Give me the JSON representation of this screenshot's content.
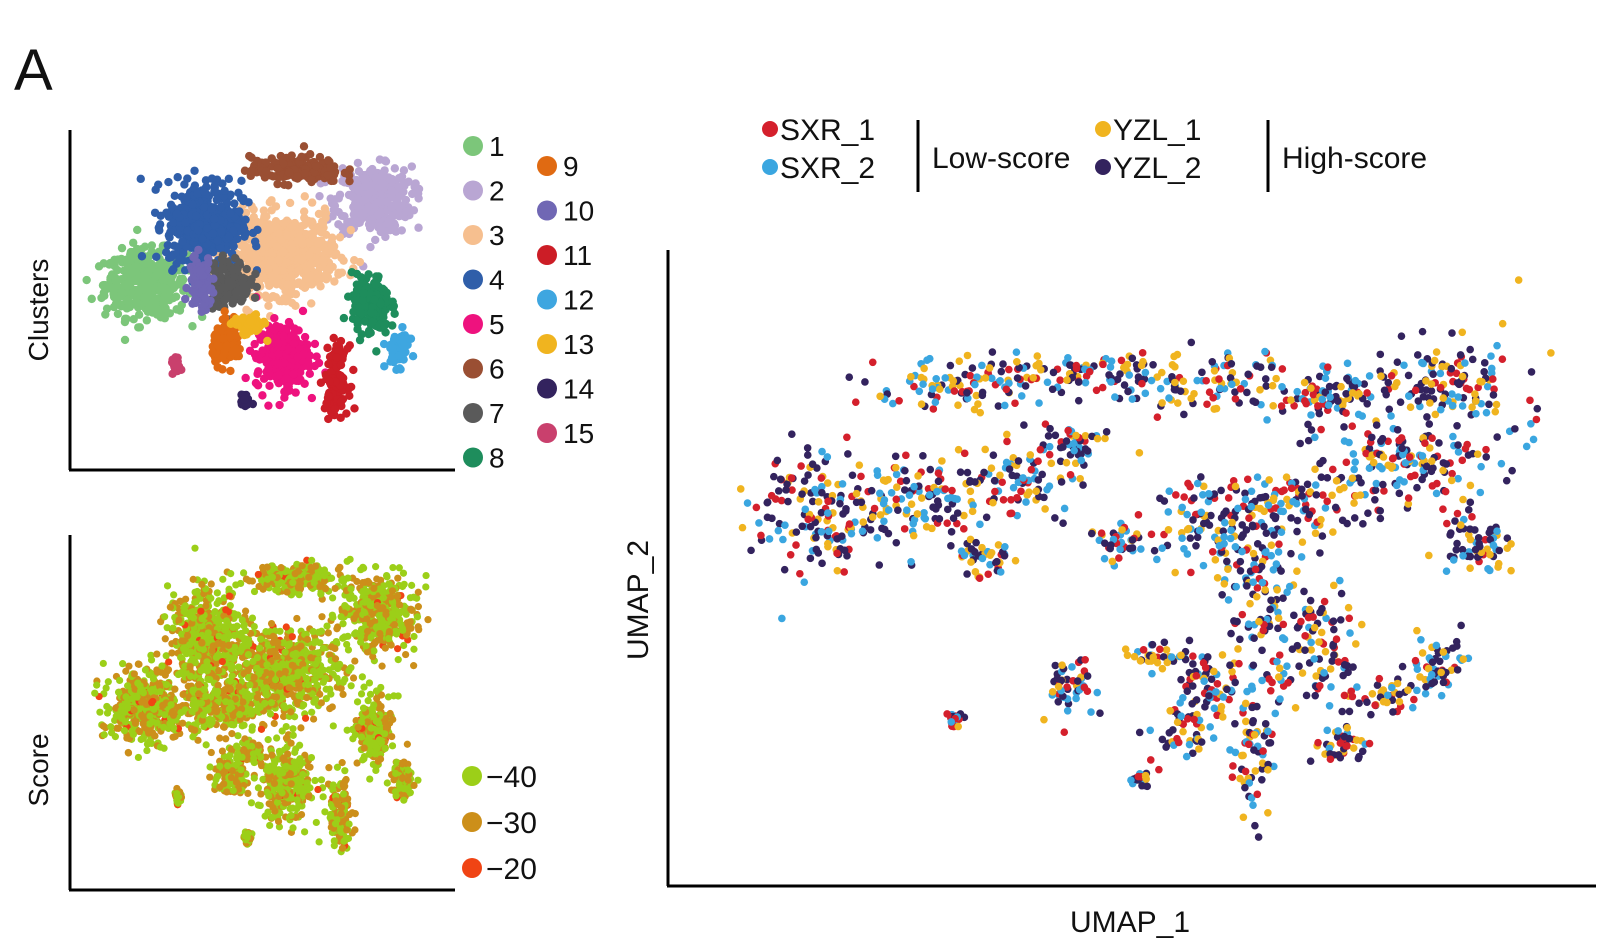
{
  "panel_letter": "A",
  "colors": {
    "clusters": [
      "#7cc67a",
      "#b9a6d3",
      "#f6bf8f",
      "#2f5ea9",
      "#ee127e",
      "#9a4f33",
      "#5a5a5a",
      "#1e8d5c",
      "#e06a12",
      "#7067b4",
      "#cc1d26",
      "#3ea6e0",
      "#f0b41f",
      "#33235e",
      "#c9406d"
    ],
    "samples": {
      "SXR_1": "#d4202c",
      "SXR_2": "#3aa6e0",
      "YZL_1": "#f0b41f",
      "YZL_2": "#33235e"
    },
    "score": [
      "#9ccf18",
      "#cc8f1a",
      "#f04414"
    ]
  },
  "chart_data": [
    {
      "type": "scatter",
      "id": "clusters",
      "ylabel": "Clusters",
      "xlabel": "",
      "legend": {
        "placement": "right",
        "entries": [
          "1",
          "2",
          "3",
          "4",
          "5",
          "6",
          "7",
          "8",
          "9",
          "10",
          "11",
          "12",
          "13",
          "14",
          "15"
        ]
      },
      "clusters": [
        {
          "name": "1",
          "center": [
            0.18,
            0.52
          ],
          "spread": [
            0.11,
            0.1
          ]
        },
        {
          "name": "2",
          "center": [
            0.85,
            0.8
          ],
          "spread": [
            0.1,
            0.1
          ]
        },
        {
          "name": "3",
          "center": [
            0.58,
            0.62
          ],
          "spread": [
            0.14,
            0.12
          ]
        },
        {
          "name": "4",
          "center": [
            0.35,
            0.72
          ],
          "spread": [
            0.1,
            0.13
          ]
        },
        {
          "name": "5",
          "center": [
            0.58,
            0.28
          ],
          "spread": [
            0.07,
            0.1
          ]
        },
        {
          "name": "6",
          "center": [
            0.62,
            0.9
          ],
          "spread": [
            0.12,
            0.04
          ]
        },
        {
          "name": "7",
          "center": [
            0.42,
            0.52
          ],
          "spread": [
            0.06,
            0.07
          ]
        },
        {
          "name": "8",
          "center": [
            0.84,
            0.45
          ],
          "spread": [
            0.05,
            0.09
          ]
        },
        {
          "name": "9",
          "center": [
            0.42,
            0.32
          ],
          "spread": [
            0.04,
            0.06
          ]
        },
        {
          "name": "10",
          "center": [
            0.34,
            0.52
          ],
          "spread": [
            0.03,
            0.08
          ]
        },
        {
          "name": "11",
          "center": [
            0.74,
            0.2
          ],
          "spread": [
            0.03,
            0.1
          ]
        },
        {
          "name": "12",
          "center": [
            0.92,
            0.3
          ],
          "spread": [
            0.03,
            0.05
          ]
        },
        {
          "name": "13",
          "center": [
            0.48,
            0.38
          ],
          "spread": [
            0.04,
            0.03
          ]
        },
        {
          "name": "14",
          "center": [
            0.47,
            0.13
          ],
          "spread": [
            0.01,
            0.02
          ]
        },
        {
          "name": "15",
          "center": [
            0.27,
            0.25
          ],
          "spread": [
            0.01,
            0.02
          ]
        }
      ]
    },
    {
      "type": "scatter",
      "id": "score",
      "ylabel": "Score",
      "xlabel": "",
      "legend": {
        "placement": "bottom-right",
        "entries": [
          "−40",
          "−30",
          "−20"
        ]
      },
      "score_values": [
        -40,
        -30,
        -20
      ]
    },
    {
      "type": "scatter",
      "id": "samples",
      "xlabel": "UMAP_1",
      "ylabel": "UMAP_2",
      "legend": {
        "placement": "top",
        "groups": [
          {
            "label": "Low-score",
            "entries": [
              "SXR_1",
              "SXR_2"
            ]
          },
          {
            "label": "High-score",
            "entries": [
              "YZL_1",
              "YZL_2"
            ]
          }
        ]
      },
      "blobs": [
        [
          0.14,
          0.6,
          0.07,
          0.09
        ],
        [
          0.25,
          0.62,
          0.05,
          0.06
        ],
        [
          0.36,
          0.65,
          0.06,
          0.05
        ],
        [
          0.3,
          0.82,
          0.08,
          0.04
        ],
        [
          0.45,
          0.84,
          0.1,
          0.03
        ],
        [
          0.6,
          0.82,
          0.09,
          0.04
        ],
        [
          0.72,
          0.8,
          0.06,
          0.04
        ],
        [
          0.85,
          0.82,
          0.07,
          0.07
        ],
        [
          0.8,
          0.68,
          0.08,
          0.06
        ],
        [
          0.68,
          0.62,
          0.07,
          0.05
        ],
        [
          0.58,
          0.58,
          0.05,
          0.06
        ],
        [
          0.64,
          0.48,
          0.04,
          0.1
        ],
        [
          0.7,
          0.36,
          0.04,
          0.08
        ],
        [
          0.63,
          0.18,
          0.02,
          0.1
        ],
        [
          0.58,
          0.3,
          0.04,
          0.05
        ],
        [
          0.42,
          0.3,
          0.03,
          0.04
        ],
        [
          0.52,
          0.35,
          0.03,
          0.02
        ],
        [
          0.48,
          0.55,
          0.03,
          0.03
        ],
        [
          0.32,
          0.52,
          0.03,
          0.03
        ],
        [
          0.88,
          0.55,
          0.04,
          0.05
        ],
        [
          0.84,
          0.33,
          0.03,
          0.05
        ],
        [
          0.78,
          0.28,
          0.03,
          0.03
        ],
        [
          0.73,
          0.2,
          0.03,
          0.03
        ],
        [
          0.55,
          0.22,
          0.03,
          0.04
        ],
        [
          0.29,
          0.24,
          0.01,
          0.01
        ],
        [
          0.5,
          0.14,
          0.01,
          0.01
        ],
        [
          0.42,
          0.72,
          0.04,
          0.03
        ]
      ]
    }
  ]
}
